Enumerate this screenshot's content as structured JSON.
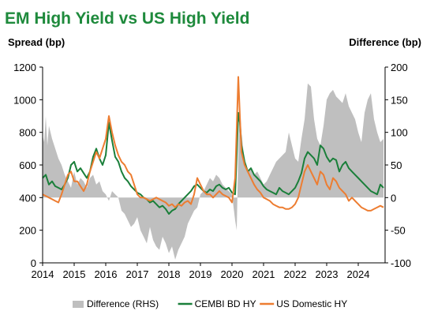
{
  "chart_data": {
    "type": "line",
    "title": "EM High Yield vs US High Yield",
    "ylabel": "Spread (bp)",
    "y2label": "Difference (bp)",
    "ylim": [
      0,
      1200
    ],
    "y2lim": [
      -100,
      200
    ],
    "yticks": [
      "0",
      "200",
      "400",
      "600",
      "800",
      "1000",
      "1200"
    ],
    "y2ticks": [
      "-100",
      "-50",
      "0",
      "50",
      "100",
      "150",
      "200"
    ],
    "xlim": [
      2014.0,
      2024.85
    ],
    "xticks": [
      "2014",
      "2015",
      "2016",
      "2017",
      "2018",
      "2019",
      "2020",
      "2021",
      "2022",
      "2023",
      "2024"
    ],
    "legend_position": "bottom",
    "series": [
      {
        "name": "Difference (RHS)",
        "axis": "right",
        "style": "area",
        "color": "#bfbfbf",
        "x": [
          2014.0,
          2014.05,
          2014.1,
          2014.15,
          2014.2,
          2014.3,
          2014.4,
          2014.5,
          2014.6,
          2014.7,
          2014.8,
          2014.9,
          2015.0,
          2015.1,
          2015.2,
          2015.3,
          2015.4,
          2015.5,
          2015.6,
          2015.7,
          2015.8,
          2015.9,
          2016.0,
          2016.1,
          2016.2,
          2016.3,
          2016.4,
          2016.5,
          2016.6,
          2016.7,
          2016.8,
          2016.9,
          2017.0,
          2017.1,
          2017.2,
          2017.3,
          2017.4,
          2017.5,
          2017.6,
          2017.7,
          2017.8,
          2017.9,
          2018.0,
          2018.1,
          2018.2,
          2018.3,
          2018.4,
          2018.5,
          2018.6,
          2018.7,
          2018.8,
          2018.9,
          2019.0,
          2019.1,
          2019.2,
          2019.3,
          2019.4,
          2019.5,
          2019.6,
          2019.7,
          2019.8,
          2019.9,
          2020.0,
          2020.1,
          2020.15,
          2020.2,
          2020.25,
          2020.3,
          2020.4,
          2020.5,
          2020.6,
          2020.7,
          2020.8,
          2020.9,
          2021.0,
          2021.1,
          2021.2,
          2021.3,
          2021.4,
          2021.5,
          2021.6,
          2021.7,
          2021.8,
          2021.9,
          2022.0,
          2022.1,
          2022.2,
          2022.3,
          2022.4,
          2022.5,
          2022.6,
          2022.7,
          2022.8,
          2022.9,
          2023.0,
          2023.1,
          2023.2,
          2023.3,
          2023.4,
          2023.5,
          2023.6,
          2023.7,
          2023.8,
          2023.9,
          2024.0,
          2024.1,
          2024.2,
          2024.3,
          2024.4,
          2024.5,
          2024.6,
          2024.7,
          2024.8
        ],
        "y": [
          95,
          85,
          125,
          80,
          110,
          90,
          75,
          60,
          50,
          35,
          25,
          15,
          40,
          20,
          30,
          25,
          15,
          30,
          35,
          20,
          25,
          10,
          5,
          -5,
          10,
          5,
          0,
          -20,
          -25,
          -35,
          -45,
          -40,
          -30,
          -50,
          -60,
          -70,
          -45,
          -65,
          -75,
          -80,
          -60,
          -70,
          -85,
          -75,
          -95,
          -80,
          -70,
          -60,
          -40,
          -30,
          -20,
          -15,
          5,
          10,
          20,
          30,
          25,
          35,
          30,
          20,
          15,
          10,
          5,
          -35,
          -50,
          70,
          140,
          100,
          55,
          40,
          45,
          35,
          40,
          30,
          20,
          25,
          35,
          45,
          55,
          60,
          65,
          70,
          100,
          80,
          60,
          55,
          90,
          120,
          175,
          170,
          120,
          90,
          80,
          110,
          150,
          160,
          165,
          155,
          150,
          145,
          160,
          140,
          130,
          120,
          100,
          85,
          130,
          150,
          160,
          120,
          100,
          85,
          90
        ]
      },
      {
        "name": "CEMBI BD HY",
        "axis": "left",
        "style": "line",
        "color": "#1a7f3a",
        "x": [
          2014.0,
          2014.1,
          2014.2,
          2014.3,
          2014.4,
          2014.5,
          2014.6,
          2014.7,
          2014.8,
          2014.9,
          2015.0,
          2015.1,
          2015.2,
          2015.3,
          2015.4,
          2015.5,
          2015.6,
          2015.7,
          2015.8,
          2015.9,
          2016.0,
          2016.1,
          2016.2,
          2016.3,
          2016.4,
          2016.5,
          2016.6,
          2016.7,
          2016.8,
          2016.9,
          2017.0,
          2017.1,
          2017.2,
          2017.3,
          2017.4,
          2017.5,
          2017.6,
          2017.7,
          2017.8,
          2017.9,
          2018.0,
          2018.1,
          2018.2,
          2018.3,
          2018.4,
          2018.5,
          2018.6,
          2018.7,
          2018.8,
          2018.9,
          2019.0,
          2019.1,
          2019.2,
          2019.3,
          2019.4,
          2019.5,
          2019.6,
          2019.7,
          2019.8,
          2019.9,
          2020.0,
          2020.1,
          2020.2,
          2020.25,
          2020.3,
          2020.4,
          2020.5,
          2020.6,
          2020.7,
          2020.8,
          2020.9,
          2021.0,
          2021.1,
          2021.2,
          2021.3,
          2021.4,
          2021.5,
          2021.6,
          2021.7,
          2021.8,
          2021.9,
          2022.0,
          2022.1,
          2022.2,
          2022.3,
          2022.4,
          2022.5,
          2022.6,
          2022.7,
          2022.8,
          2022.9,
          2023.0,
          2023.1,
          2023.2,
          2023.3,
          2023.4,
          2023.5,
          2023.6,
          2023.7,
          2023.8,
          2023.9,
          2024.0,
          2024.1,
          2024.2,
          2024.3,
          2024.4,
          2024.5,
          2024.6,
          2024.7,
          2024.8
        ],
        "y": [
          520,
          540,
          480,
          500,
          470,
          460,
          450,
          480,
          520,
          600,
          620,
          560,
          580,
          550,
          520,
          560,
          650,
          700,
          640,
          600,
          660,
          860,
          750,
          650,
          620,
          560,
          520,
          500,
          470,
          450,
          430,
          420,
          400,
          390,
          370,
          380,
          360,
          340,
          350,
          330,
          300,
          320,
          330,
          360,
          380,
          400,
          420,
          440,
          470,
          480,
          460,
          440,
          430,
          450,
          440,
          470,
          480,
          460,
          450,
          460,
          430,
          420,
          920,
          860,
          720,
          620,
          560,
          580,
          540,
          520,
          500,
          470,
          450,
          440,
          430,
          420,
          460,
          440,
          430,
          420,
          440,
          460,
          500,
          550,
          640,
          680,
          660,
          640,
          600,
          720,
          700,
          650,
          620,
          640,
          630,
          560,
          600,
          620,
          580,
          560,
          540,
          520,
          500,
          480,
          460,
          440,
          430,
          420,
          480,
          460
        ]
      },
      {
        "name": "US Domestic HY",
        "axis": "left",
        "style": "line",
        "color": "#ed7d31",
        "x": [
          2014.0,
          2014.1,
          2014.2,
          2014.3,
          2014.4,
          2014.5,
          2014.6,
          2014.7,
          2014.8,
          2014.9,
          2015.0,
          2015.1,
          2015.2,
          2015.3,
          2015.4,
          2015.5,
          2015.6,
          2015.7,
          2015.8,
          2015.9,
          2016.0,
          2016.1,
          2016.2,
          2016.3,
          2016.4,
          2016.5,
          2016.6,
          2016.7,
          2016.8,
          2016.9,
          2017.0,
          2017.1,
          2017.2,
          2017.3,
          2017.4,
          2017.5,
          2017.6,
          2017.7,
          2017.8,
          2017.9,
          2018.0,
          2018.1,
          2018.2,
          2018.3,
          2018.4,
          2018.5,
          2018.6,
          2018.7,
          2018.8,
          2018.9,
          2019.0,
          2019.1,
          2019.2,
          2019.3,
          2019.4,
          2019.5,
          2019.6,
          2019.7,
          2019.8,
          2019.9,
          2020.0,
          2020.1,
          2020.2,
          2020.25,
          2020.3,
          2020.4,
          2020.5,
          2020.6,
          2020.7,
          2020.8,
          2020.9,
          2021.0,
          2021.1,
          2021.2,
          2021.3,
          2021.4,
          2021.5,
          2021.6,
          2021.7,
          2021.8,
          2021.9,
          2022.0,
          2022.1,
          2022.2,
          2022.3,
          2022.4,
          2022.5,
          2022.6,
          2022.7,
          2022.8,
          2022.9,
          2023.0,
          2023.1,
          2023.2,
          2023.3,
          2023.4,
          2023.5,
          2023.6,
          2023.7,
          2023.8,
          2023.9,
          2024.0,
          2024.1,
          2024.2,
          2024.3,
          2024.4,
          2024.5,
          2024.6,
          2024.7,
          2024.8
        ],
        "y": [
          420,
          410,
          400,
          390,
          380,
          370,
          420,
          480,
          540,
          560,
          500,
          500,
          470,
          440,
          480,
          560,
          620,
          680,
          640,
          700,
          760,
          900,
          800,
          720,
          660,
          620,
          600,
          560,
          540,
          480,
          420,
          400,
          400,
          390,
          380,
          390,
          400,
          390,
          380,
          370,
          350,
          360,
          340,
          360,
          350,
          370,
          380,
          360,
          420,
          520,
          480,
          440,
          420,
          420,
          400,
          420,
          440,
          420,
          410,
          400,
          370,
          520,
          1140,
          900,
          680,
          600,
          560,
          520,
          480,
          450,
          430,
          400,
          390,
          380,
          360,
          350,
          340,
          340,
          330,
          330,
          340,
          360,
          400,
          480,
          560,
          600,
          560,
          520,
          480,
          560,
          540,
          480,
          450,
          520,
          500,
          460,
          440,
          420,
          380,
          400,
          380,
          360,
          340,
          330,
          320,
          320,
          330,
          340,
          350,
          340
        ]
      }
    ]
  }
}
